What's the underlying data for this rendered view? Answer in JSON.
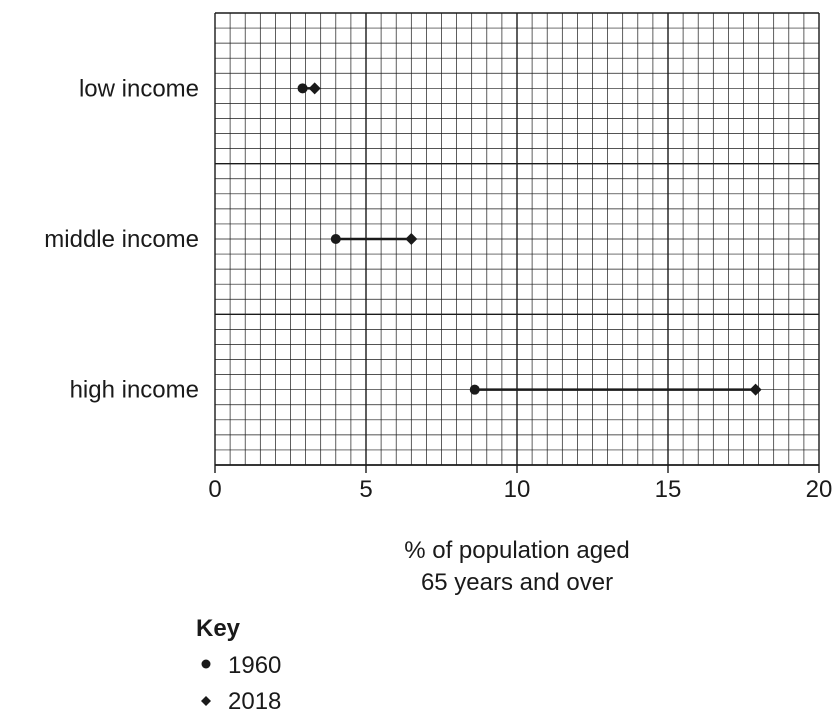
{
  "chart_data": {
    "type": "dumbbell",
    "categories": [
      "low income",
      "middle income",
      "high income"
    ],
    "series": [
      {
        "name": "1960",
        "marker": "circle",
        "values": [
          2.9,
          4.0,
          8.6
        ]
      },
      {
        "name": "2018",
        "marker": "diamond",
        "values": [
          3.3,
          6.5,
          17.9
        ]
      }
    ],
    "xlabel_lines": [
      "% of population aged",
      "65 years and over"
    ],
    "xlim": [
      0,
      20
    ],
    "xticks": [
      "0",
      "5",
      "10",
      "15",
      "20"
    ],
    "grid": true,
    "legend": {
      "title": "Key",
      "placement": "bottom-left"
    },
    "colors": {
      "line": "#1a1a1a",
      "grid": "#1a1a1a",
      "background": "#ffffff"
    }
  }
}
